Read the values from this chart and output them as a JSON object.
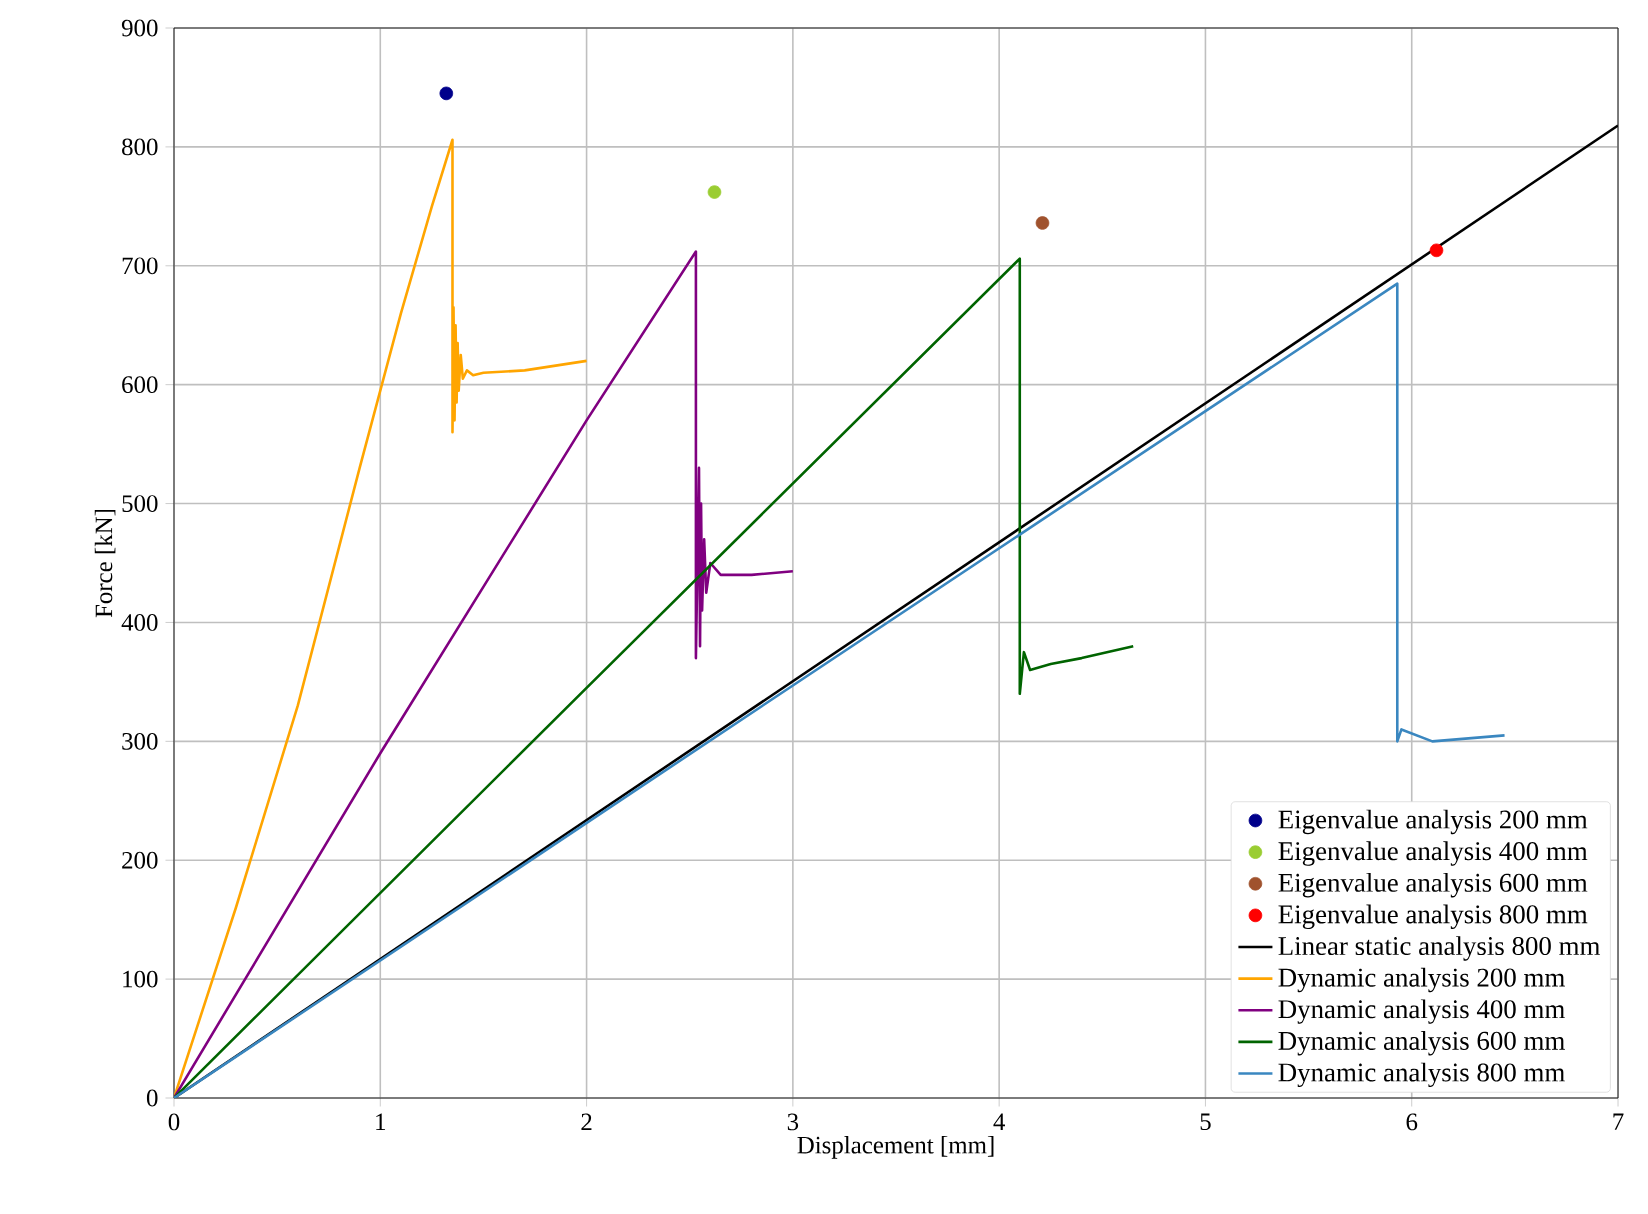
{
  "chart_data": {
    "type": "line",
    "xlabel": "Displacement [mm]",
    "ylabel": "Force [kN]",
    "xlim": [
      0,
      7
    ],
    "ylim": [
      0,
      900
    ],
    "xticks": [
      0,
      1,
      2,
      3,
      4,
      5,
      6,
      7
    ],
    "yticks": [
      0,
      100,
      200,
      300,
      400,
      500,
      600,
      700,
      800,
      900
    ],
    "grid": true,
    "legend": "bottom right",
    "marker": "none",
    "line_style": "solid",
    "series": [
      {
        "name": "Eigenvalue analysis 200 mm",
        "type": "scatter",
        "marker": "circle",
        "color": "#00008b",
        "x": [
          1.32
        ],
        "values": [
          845
        ]
      },
      {
        "name": "Eigenvalue analysis 400 mm",
        "type": "scatter",
        "marker": "circle",
        "color": "#9acd32",
        "x": [
          2.62
        ],
        "values": [
          762
        ]
      },
      {
        "name": "Eigenvalue analysis 600 mm",
        "type": "scatter",
        "marker": "circle",
        "color": "#a0522d",
        "x": [
          4.21
        ],
        "values": [
          736
        ]
      },
      {
        "name": "Eigenvalue analysis 800 mm",
        "type": "scatter",
        "marker": "circle",
        "color": "#ff0000",
        "x": [
          6.12
        ],
        "values": [
          713
        ]
      },
      {
        "name": "Linear static analysis 800 mm",
        "color": "#000000",
        "x": [
          0,
          7
        ],
        "values": [
          0,
          818
        ]
      },
      {
        "name": "Dynamic analysis 200 mm",
        "color": "#ffa500",
        "x": [
          0,
          0.3,
          0.6,
          0.9,
          1.1,
          1.25,
          1.35,
          1.35,
          1.355,
          1.36,
          1.365,
          1.37,
          1.375,
          1.38,
          1.39,
          1.4,
          1.42,
          1.45,
          1.5,
          1.7,
          2.0
        ],
        "values": [
          0,
          160,
          330,
          530,
          660,
          750,
          806,
          560,
          665,
          570,
          650,
          585,
          635,
          595,
          625,
          605,
          612,
          608,
          610,
          612,
          620
        ]
      },
      {
        "name": "Dynamic analysis 400 mm",
        "color": "#800080",
        "x": [
          0,
          1,
          2,
          2.53,
          2.53,
          2.545,
          2.55,
          2.555,
          2.56,
          2.57,
          2.58,
          2.6,
          2.65,
          2.8,
          3.0
        ],
        "values": [
          0,
          290,
          570,
          712,
          370,
          530,
          380,
          500,
          410,
          470,
          425,
          450,
          440,
          440,
          443
        ]
      },
      {
        "name": "Dynamic analysis 600 mm",
        "color": "#006400",
        "x": [
          0,
          2,
          4.1,
          4.1,
          4.12,
          4.15,
          4.25,
          4.4,
          4.65
        ],
        "values": [
          0,
          345,
          706,
          340,
          375,
          360,
          365,
          370,
          380
        ]
      },
      {
        "name": "Dynamic analysis 800 mm",
        "color": "#3a87c0",
        "x": [
          0,
          3,
          5.93,
          5.93,
          5.95,
          6.1,
          6.45
        ],
        "values": [
          0,
          347,
          685,
          300,
          310,
          300,
          305
        ]
      }
    ]
  }
}
